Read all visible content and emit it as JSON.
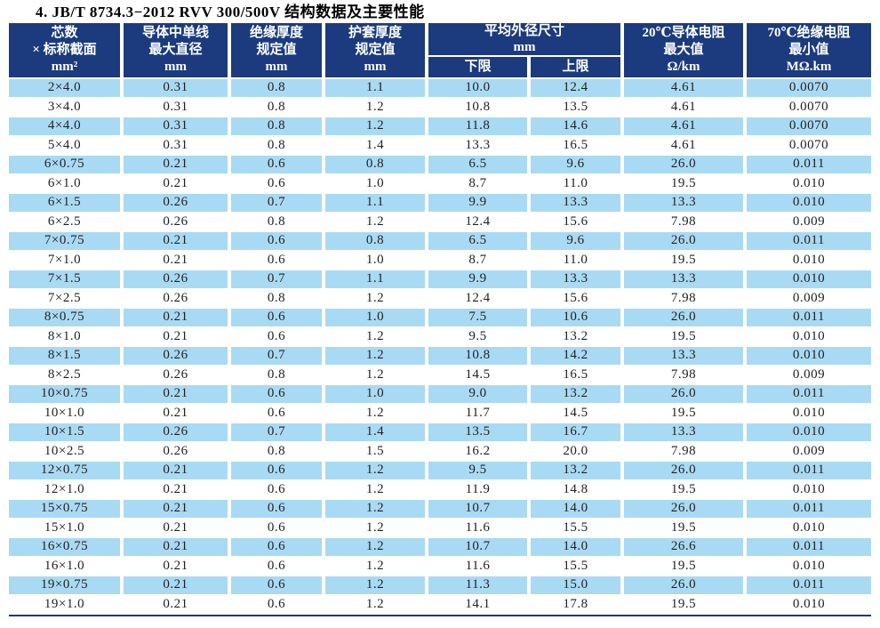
{
  "title": "4. JB/T 8734.3−2012 RVV 300/500V 结构数据及主要性能",
  "colors": {
    "header_bg": "#1b3b7e",
    "stripe": "#a9daf3",
    "rule": "#1b3b7e",
    "cell_text": "#1f1f1f"
  },
  "table": {
    "columns": [
      {
        "id": "cores-section",
        "lines": [
          "芯数",
          "× 标称截面",
          "mm²"
        ]
      },
      {
        "id": "max-single-wire-diameter",
        "lines": [
          "导体中单线",
          "最大直径",
          "mm"
        ]
      },
      {
        "id": "insulation-thickness",
        "lines": [
          "绝缘厚度",
          "规定值",
          "mm"
        ]
      },
      {
        "id": "sheath-thickness",
        "lines": [
          "护套厚度",
          "规定值",
          "mm"
        ]
      },
      {
        "id": "mean-outer-diameter",
        "lines": [
          "平均外径尺寸",
          "mm"
        ],
        "sub": [
          {
            "id": "lower-limit",
            "label": "下限"
          },
          {
            "id": "upper-limit",
            "label": "上限"
          }
        ]
      },
      {
        "id": "conductor-resistance-20c",
        "lines": [
          "20℃导体电阻",
          "最大值",
          "Ω/km"
        ]
      },
      {
        "id": "insulation-resistance-70c",
        "lines": [
          "70℃绝缘电阻",
          "最小值",
          "MΩ.km"
        ]
      }
    ],
    "rows": [
      [
        "2×4.0",
        "0.31",
        "0.8",
        "1.1",
        "10.0",
        "12.4",
        "4.61",
        "0.0070"
      ],
      [
        "3×4.0",
        "0.31",
        "0.8",
        "1.2",
        "10.8",
        "13.5",
        "4.61",
        "0.0070"
      ],
      [
        "4×4.0",
        "0.31",
        "0.8",
        "1.2",
        "11.8",
        "14.6",
        "4.61",
        "0.0070"
      ],
      [
        "5×4.0",
        "0.31",
        "0.8",
        "1.4",
        "13.3",
        "16.5",
        "4.61",
        "0.0070"
      ],
      [
        "6×0.75",
        "0.21",
        "0.6",
        "0.8",
        "6.5",
        "9.6",
        "26.0",
        "0.011"
      ],
      [
        "6×1.0",
        "0.21",
        "0.6",
        "1.0",
        "8.7",
        "11.0",
        "19.5",
        "0.010"
      ],
      [
        "6×1.5",
        "0.26",
        "0.7",
        "1.1",
        "9.9",
        "13.3",
        "13.3",
        "0.010"
      ],
      [
        "6×2.5",
        "0.26",
        "0.8",
        "1.2",
        "12.4",
        "15.6",
        "7.98",
        "0.009"
      ],
      [
        "7×0.75",
        "0.21",
        "0.6",
        "0.8",
        "6.5",
        "9.6",
        "26.0",
        "0.011"
      ],
      [
        "7×1.0",
        "0.21",
        "0.6",
        "1.0",
        "8.7",
        "11.0",
        "19.5",
        "0.010"
      ],
      [
        "7×1.5",
        "0.26",
        "0.7",
        "1.1",
        "9.9",
        "13.3",
        "13.3",
        "0.010"
      ],
      [
        "7×2.5",
        "0.26",
        "0.8",
        "1.2",
        "12.4",
        "15.6",
        "7.98",
        "0.009"
      ],
      [
        "8×0.75",
        "0.21",
        "0.6",
        "1.0",
        "7.5",
        "10.6",
        "26.0",
        "0.011"
      ],
      [
        "8×1.0",
        "0.21",
        "0.6",
        "1.2",
        "9.5",
        "13.2",
        "19.5",
        "0.010"
      ],
      [
        "8×1.5",
        "0.26",
        "0.7",
        "1.2",
        "10.8",
        "14.2",
        "13.3",
        "0.010"
      ],
      [
        "8×2.5",
        "0.26",
        "0.8",
        "1.2",
        "14.5",
        "16.5",
        "7.98",
        "0.009"
      ],
      [
        "10×0.75",
        "0.21",
        "0.6",
        "1.0",
        "9.0",
        "13.2",
        "26.0",
        "0.011"
      ],
      [
        "10×1.0",
        "0.21",
        "0.6",
        "1.2",
        "11.7",
        "14.5",
        "19.5",
        "0.010"
      ],
      [
        "10×1.5",
        "0.26",
        "0.7",
        "1.4",
        "13.5",
        "16.7",
        "13.3",
        "0.010"
      ],
      [
        "10×2.5",
        "0.26",
        "0.8",
        "1.5",
        "16.2",
        "20.0",
        "7.98",
        "0.009"
      ],
      [
        "12×0.75",
        "0.21",
        "0.6",
        "1.2",
        "9.5",
        "13.2",
        "26.0",
        "0.011"
      ],
      [
        "12×1.0",
        "0.21",
        "0.6",
        "1.2",
        "11.9",
        "14.8",
        "19.5",
        "0.010"
      ],
      [
        "15×0.75",
        "0.21",
        "0.6",
        "1.2",
        "10.7",
        "14.0",
        "26.0",
        "0.011"
      ],
      [
        "15×1.0",
        "0.21",
        "0.6",
        "1.2",
        "11.6",
        "15.5",
        "19.5",
        "0.010"
      ],
      [
        "16×0.75",
        "0.21",
        "0.6",
        "1.2",
        "10.7",
        "14.0",
        "26.6",
        "0.011"
      ],
      [
        "16×1.0",
        "0.21",
        "0.6",
        "1.2",
        "11.6",
        "15.5",
        "19.5",
        "0.010"
      ],
      [
        "19×0.75",
        "0.21",
        "0.6",
        "1.2",
        "11.3",
        "15.0",
        "26.0",
        "0.011"
      ],
      [
        "19×1.0",
        "0.21",
        "0.6",
        "1.2",
        "14.1",
        "17.8",
        "19.5",
        "0.010"
      ]
    ]
  }
}
